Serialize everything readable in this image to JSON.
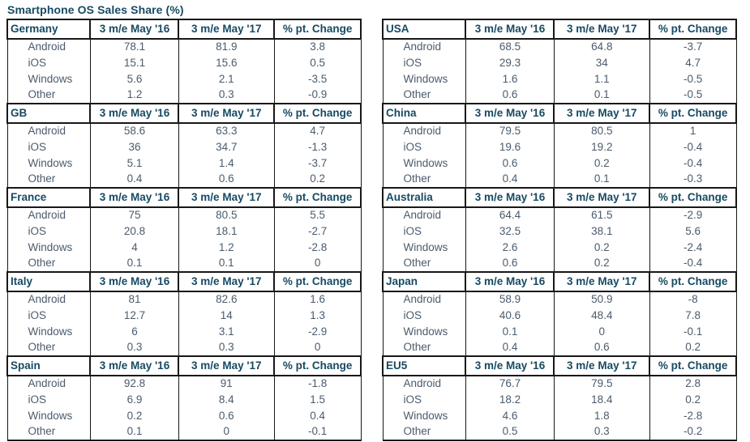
{
  "title": "Smartphone OS Sales Share (%)",
  "colors": {
    "title_text": "#174a63",
    "header_text": "#174a63",
    "body_text": "#4b5b6c",
    "border": "#181818",
    "background": "#ffffff"
  },
  "chart_data": {
    "type": "table",
    "title": "Smartphone OS Sales Share (%)",
    "value_columns": [
      "3 m/e May '16",
      "3 m/e May '17",
      "% pt. Change"
    ],
    "row_labels": [
      "Android",
      "iOS",
      "Windows",
      "Other"
    ],
    "columns_layout": {
      "left": [
        "Germany",
        "GB",
        "France",
        "Italy",
        "Spain"
      ],
      "right": [
        "USA",
        "China",
        "Australia",
        "Japan",
        "EU5"
      ]
    },
    "tables": [
      {
        "region": "Germany",
        "side": "left",
        "rows": [
          {
            "label": "Android",
            "values": [
              78.1,
              81.9,
              3.8
            ]
          },
          {
            "label": "iOS",
            "values": [
              15.1,
              15.6,
              0.5
            ]
          },
          {
            "label": "Windows",
            "values": [
              5.6,
              2.1,
              -3.5
            ]
          },
          {
            "label": "Other",
            "values": [
              1.2,
              0.3,
              -0.9
            ]
          }
        ]
      },
      {
        "region": "GB",
        "side": "left",
        "rows": [
          {
            "label": "Android",
            "values": [
              58.6,
              63.3,
              4.7
            ]
          },
          {
            "label": "iOS",
            "values": [
              36,
              34.7,
              -1.3
            ]
          },
          {
            "label": "Windows",
            "values": [
              5.1,
              1.4,
              -3.7
            ]
          },
          {
            "label": "Other",
            "values": [
              0.4,
              0.6,
              0.2
            ]
          }
        ]
      },
      {
        "region": "France",
        "side": "left",
        "rows": [
          {
            "label": "Android",
            "values": [
              75,
              80.5,
              5.5
            ]
          },
          {
            "label": "iOS",
            "values": [
              20.8,
              18.1,
              -2.7
            ]
          },
          {
            "label": "Windows",
            "values": [
              4,
              1.2,
              -2.8
            ]
          },
          {
            "label": "Other",
            "values": [
              0.1,
              0.1,
              0
            ]
          }
        ]
      },
      {
        "region": "Italy",
        "side": "left",
        "rows": [
          {
            "label": "Android",
            "values": [
              81,
              82.6,
              1.6
            ]
          },
          {
            "label": "iOS",
            "values": [
              12.7,
              14,
              1.3
            ]
          },
          {
            "label": "Windows",
            "values": [
              6,
              3.1,
              -2.9
            ]
          },
          {
            "label": "Other",
            "values": [
              0.3,
              0.3,
              0
            ]
          }
        ]
      },
      {
        "region": "Spain",
        "side": "left",
        "rows": [
          {
            "label": "Android",
            "values": [
              92.8,
              91,
              -1.8
            ]
          },
          {
            "label": "iOS",
            "values": [
              6.9,
              8.4,
              1.5
            ]
          },
          {
            "label": "Windows",
            "values": [
              0.2,
              0.6,
              0.4
            ]
          },
          {
            "label": "Other",
            "values": [
              0.1,
              0,
              -0.1
            ]
          }
        ]
      },
      {
        "region": "USA",
        "side": "right",
        "rows": [
          {
            "label": "Android",
            "values": [
              68.5,
              64.8,
              -3.7
            ]
          },
          {
            "label": "iOS",
            "values": [
              29.3,
              34,
              4.7
            ]
          },
          {
            "label": "Windows",
            "values": [
              1.6,
              1.1,
              -0.5
            ]
          },
          {
            "label": "Other",
            "values": [
              0.6,
              0.1,
              -0.5
            ]
          }
        ]
      },
      {
        "region": "China",
        "side": "right",
        "rows": [
          {
            "label": "Android",
            "values": [
              79.5,
              80.5,
              1
            ]
          },
          {
            "label": "iOS",
            "values": [
              19.6,
              19.2,
              -0.4
            ]
          },
          {
            "label": "Windows",
            "values": [
              0.6,
              0.2,
              -0.4
            ]
          },
          {
            "label": "Other",
            "values": [
              0.4,
              0.1,
              -0.3
            ]
          }
        ]
      },
      {
        "region": "Australia",
        "side": "right",
        "rows": [
          {
            "label": "Android",
            "values": [
              64.4,
              61.5,
              -2.9
            ]
          },
          {
            "label": "iOS",
            "values": [
              32.5,
              38.1,
              5.6
            ]
          },
          {
            "label": "Windows",
            "values": [
              2.6,
              0.2,
              -2.4
            ]
          },
          {
            "label": "Other",
            "values": [
              0.6,
              0.2,
              -0.4
            ]
          }
        ]
      },
      {
        "region": "Japan",
        "side": "right",
        "rows": [
          {
            "label": "Android",
            "values": [
              58.9,
              50.9,
              -8
            ]
          },
          {
            "label": "iOS",
            "values": [
              40.6,
              48.4,
              7.8
            ]
          },
          {
            "label": "Windows",
            "values": [
              0.1,
              0,
              -0.1
            ]
          },
          {
            "label": "Other",
            "values": [
              0.4,
              0.6,
              0.2
            ]
          }
        ]
      },
      {
        "region": "EU5",
        "side": "right",
        "rows": [
          {
            "label": "Android",
            "values": [
              76.7,
              79.5,
              2.8
            ]
          },
          {
            "label": "iOS",
            "values": [
              18.2,
              18.4,
              0.2
            ]
          },
          {
            "label": "Windows",
            "values": [
              4.6,
              1.8,
              -2.8
            ]
          },
          {
            "label": "Other",
            "values": [
              0.5,
              0.3,
              -0.2
            ]
          }
        ]
      }
    ]
  }
}
